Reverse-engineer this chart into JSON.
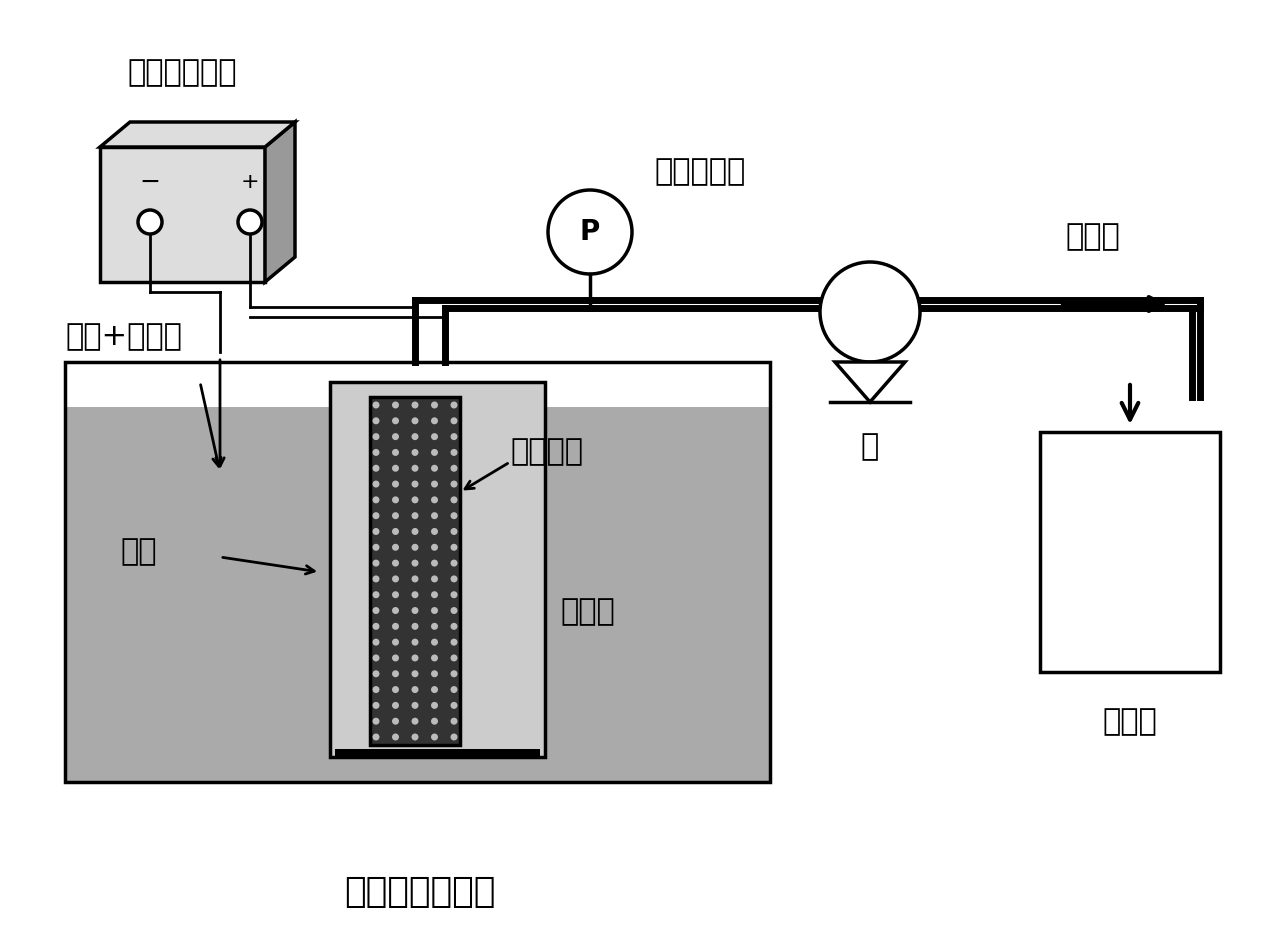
{
  "bg_color": "#ffffff",
  "lc": "#000000",
  "label_power_supply": "直流稳压电源",
  "label_vacuum_gauge": "真空压力表",
  "label_permeate": "透过液",
  "label_pump": "泵",
  "label_alcohol": "醇类+电解质",
  "label_cathode": "阴极",
  "label_membrane": "电催化膜",
  "label_reaction": "反应液",
  "label_product": "醛或酸",
  "label_reactor": "电催化膜反应器",
  "tank_fill": "#aaaaaa",
  "inner_fill": "#cccccc",
  "membrane_fill": "#333333",
  "membrane_dot": "#bbbbbb",
  "power_fill": "#dddddd",
  "power_side_fill": "#999999"
}
